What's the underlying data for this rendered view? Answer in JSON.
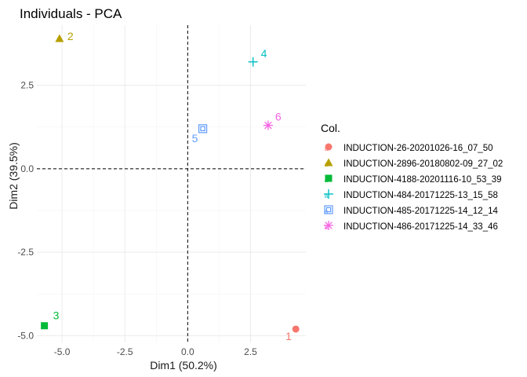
{
  "chart_data": {
    "type": "scatter",
    "title": "Individuals - PCA",
    "xlabel": "Dim1 (50.2%)",
    "ylabel": "Dim2 (39.5%)",
    "xlim": [
      -6.0,
      4.7
    ],
    "ylim": [
      -5.2,
      4.3
    ],
    "x_ticks": [
      -5.0,
      -2.5,
      0.0,
      2.5
    ],
    "x_tick_labels": [
      "-5.0",
      "-2.5",
      "0.0",
      "2.5"
    ],
    "y_ticks": [
      -5.0,
      -2.5,
      0.0,
      2.5
    ],
    "y_tick_labels": [
      "-5.0",
      "-2.5",
      "0.0",
      "2.5"
    ],
    "grid": true,
    "reference_lines": {
      "x": 0,
      "y": 0,
      "style": "dashed"
    },
    "legend": {
      "title": "Col.",
      "placement": "right"
    },
    "series": [
      {
        "name": "INDUCTION-26-20201026-16_07_50",
        "label": "1",
        "x": 4.3,
        "y": -4.8,
        "color": "#F8766D",
        "shape": "circle"
      },
      {
        "name": "INDUCTION-2896-20180802-09_27_02",
        "label": "2",
        "x": -5.1,
        "y": 3.9,
        "color": "#B79F00",
        "shape": "triangle"
      },
      {
        "name": "INDUCTION-4188-20201116-10_53_39",
        "label": "3",
        "x": -5.7,
        "y": -4.7,
        "color": "#00BA38",
        "shape": "square"
      },
      {
        "name": "INDUCTION-484-20171225-13_15_58",
        "label": "4",
        "x": 2.6,
        "y": 3.2,
        "color": "#00BFC4",
        "shape": "plus"
      },
      {
        "name": "INDUCTION-485-20171225-14_12_14",
        "label": "5",
        "x": 0.6,
        "y": 1.2,
        "color": "#619CFF",
        "shape": "boxed-square"
      },
      {
        "name": "INDUCTION-486-20171225-14_33_46",
        "label": "6",
        "x": 3.2,
        "y": 1.3,
        "color": "#F564E3",
        "shape": "asterisk"
      }
    ]
  }
}
